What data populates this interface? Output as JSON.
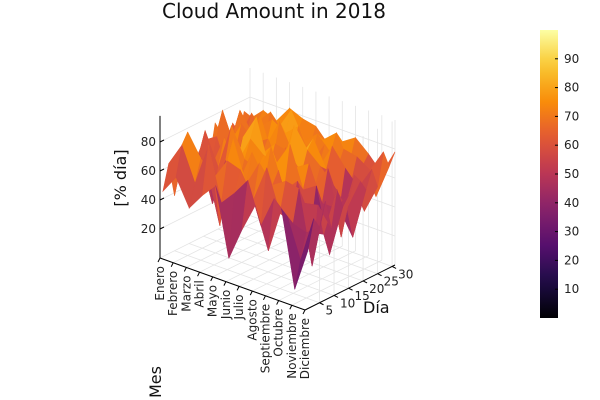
{
  "chart_data": {
    "type": "surface",
    "title": "Cloud Amount in 2018",
    "xlabel": "Día",
    "ylabel": "Mes",
    "zlabel": "[% día]",
    "x_ticks": [
      5,
      10,
      15,
      20,
      25,
      30
    ],
    "y_ticks": [
      "Enero",
      "Febrero",
      "Marzo",
      "Abril",
      "Mayo",
      "Junio",
      "Julio",
      "Agosto",
      "Septiembre",
      "Octubre",
      "Noviembre",
      "Diciembre"
    ],
    "z_ticks": [
      20,
      40,
      60,
      80
    ],
    "z_range": [
      0,
      100
    ],
    "colorbar": {
      "colormap": "inferno",
      "range": [
        0,
        100
      ],
      "ticks": [
        10,
        20,
        30,
        40,
        50,
        60,
        70,
        80,
        90
      ]
    },
    "days": [
      1,
      3,
      5,
      7,
      9,
      11,
      13,
      15,
      17,
      19,
      21,
      23,
      25,
      27,
      29,
      31
    ],
    "months": [
      "Enero",
      "Febrero",
      "Marzo",
      "Abril",
      "Mayo",
      "Junio",
      "Julio",
      "Agosto",
      "Septiembre",
      "Octubre",
      "Noviembre",
      "Diciembre"
    ],
    "series": [
      {
        "values": [
          45,
          62,
          38,
          55,
          70,
          42,
          58,
          66,
          50,
          74,
          60,
          48,
          68,
          55,
          72,
          65
        ]
      },
      {
        "values": [
          58,
          78,
          85,
          48,
          66,
          80,
          52,
          72,
          88,
          62,
          70,
          82,
          58,
          76,
          68,
          74
        ]
      },
      {
        "values": [
          40,
          55,
          70,
          62,
          35,
          58,
          76,
          45,
          64,
          80,
          55,
          68,
          72,
          60,
          78,
          70
        ]
      },
      {
        "values": [
          52,
          84,
          60,
          25,
          68,
          90,
          62,
          78,
          55,
          70,
          86,
          64,
          80,
          72,
          66,
          82
        ]
      },
      {
        "values": [
          62,
          48,
          75,
          88,
          56,
          70,
          82,
          95,
          68,
          76,
          60,
          84,
          74,
          88,
          70,
          78
        ]
      },
      {
        "values": [
          15,
          58,
          72,
          60,
          80,
          66,
          74,
          62,
          78,
          58,
          72,
          66,
          82,
          70,
          64,
          76
        ]
      },
      {
        "values": [
          38,
          70,
          55,
          78,
          64,
          85,
          72,
          60,
          76,
          92,
          68,
          74,
          60,
          78,
          72,
          66
        ]
      },
      {
        "values": [
          58,
          42,
          80,
          66,
          74,
          58,
          88,
          70,
          64,
          78,
          84,
          62,
          76,
          68,
          80,
          72
        ]
      },
      {
        "values": [
          30,
          64,
          52,
          72,
          46,
          68,
          60,
          76,
          58,
          70,
          66,
          80,
          64,
          74,
          62,
          78
        ]
      },
      {
        "values": [
          62,
          55,
          48,
          70,
          58,
          36,
          66,
          52,
          74,
          60,
          42,
          68,
          56,
          72,
          64,
          70
        ]
      },
      {
        "values": [
          10,
          28,
          45,
          20,
          60,
          38,
          22,
          52,
          30,
          48,
          26,
          58,
          40,
          66,
          46,
          60
        ]
      },
      {
        "values": [
          40,
          60,
          52,
          68,
          48,
          72,
          58,
          64,
          76,
          70,
          62,
          74,
          60,
          82,
          70,
          78
        ]
      }
    ]
  }
}
